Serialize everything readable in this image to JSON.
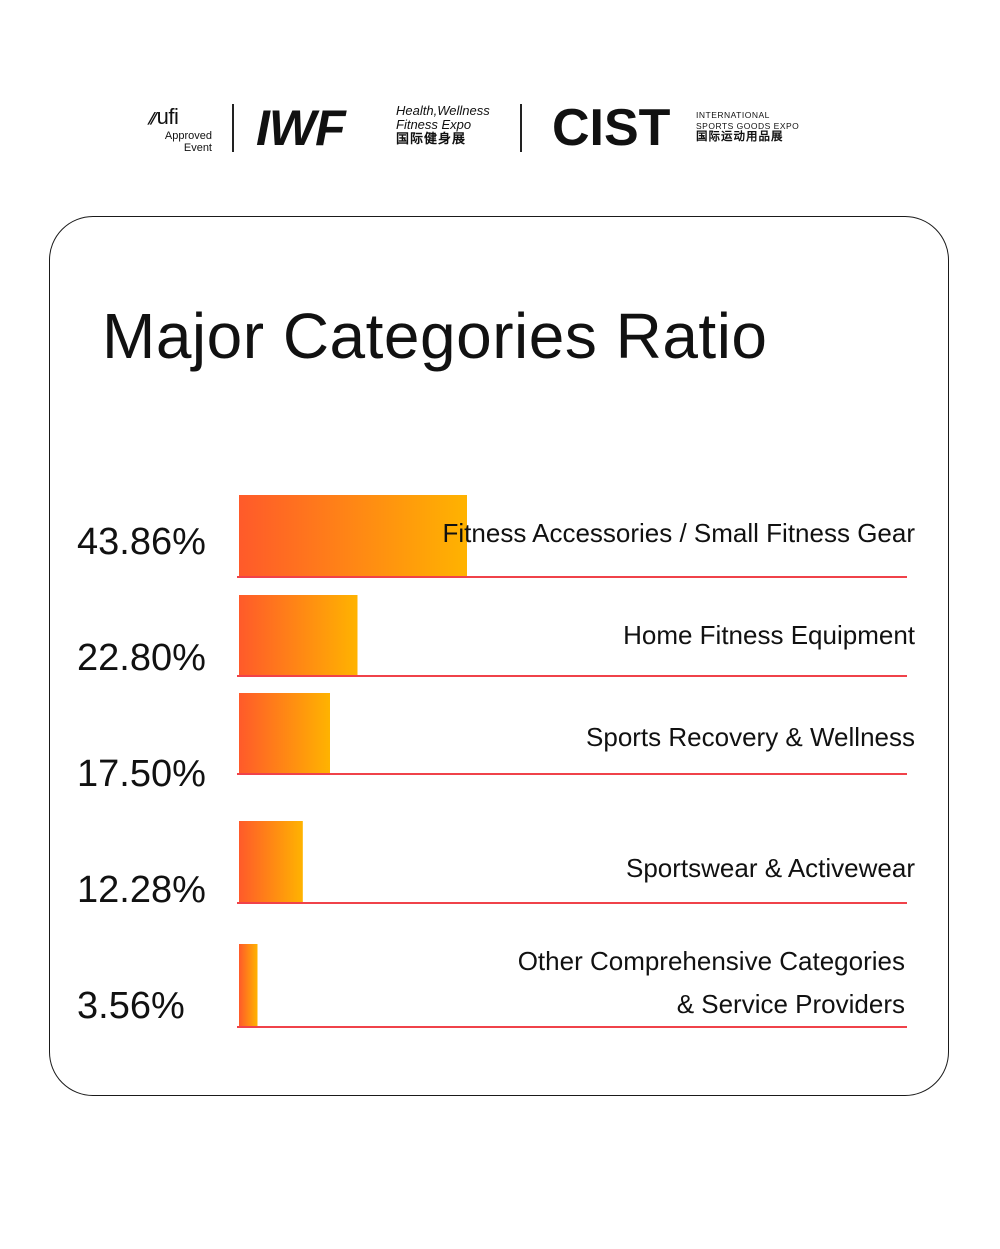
{
  "header": {
    "ufi_mark": "ufi",
    "ufi_line1": "Approved",
    "ufi_line2": "Event",
    "iwf_logo": "IWF",
    "iwf_line1": "Health,Wellness",
    "iwf_line2": "Fitness Expo",
    "iwf_line3": "国际健身展",
    "cist_logo": "CIST",
    "cist_line1": "INTERNATIONAL",
    "cist_line2": "SPORTS GOODS EXPO",
    "cist_line3": "国际运动用品展"
  },
  "colors": {
    "bar_start": "#ff5a2a",
    "bar_end": "#ffb300",
    "baseline": "#f0424a",
    "text": "#111111",
    "card_border": "#1a1a1a"
  },
  "chart_data": {
    "type": "bar",
    "title": "Major Categories Ratio",
    "orientation": "horizontal",
    "categories": [
      [
        "Fitness Accessories / Small Fitness Gear"
      ],
      [
        "Home Fitness Equipment"
      ],
      [
        "Sports Recovery & Wellness"
      ],
      [
        "Sportswear & Activewear"
      ],
      [
        "Other Comprehensive Categories",
        "& Service Providers"
      ]
    ],
    "values": [
      43.86,
      22.8,
      17.5,
      12.28,
      3.56
    ],
    "value_labels": [
      "43.86%",
      "22.80%",
      "17.50%",
      "12.28%",
      "3.56%"
    ],
    "unit": "%",
    "grid": false,
    "legend": "none"
  }
}
